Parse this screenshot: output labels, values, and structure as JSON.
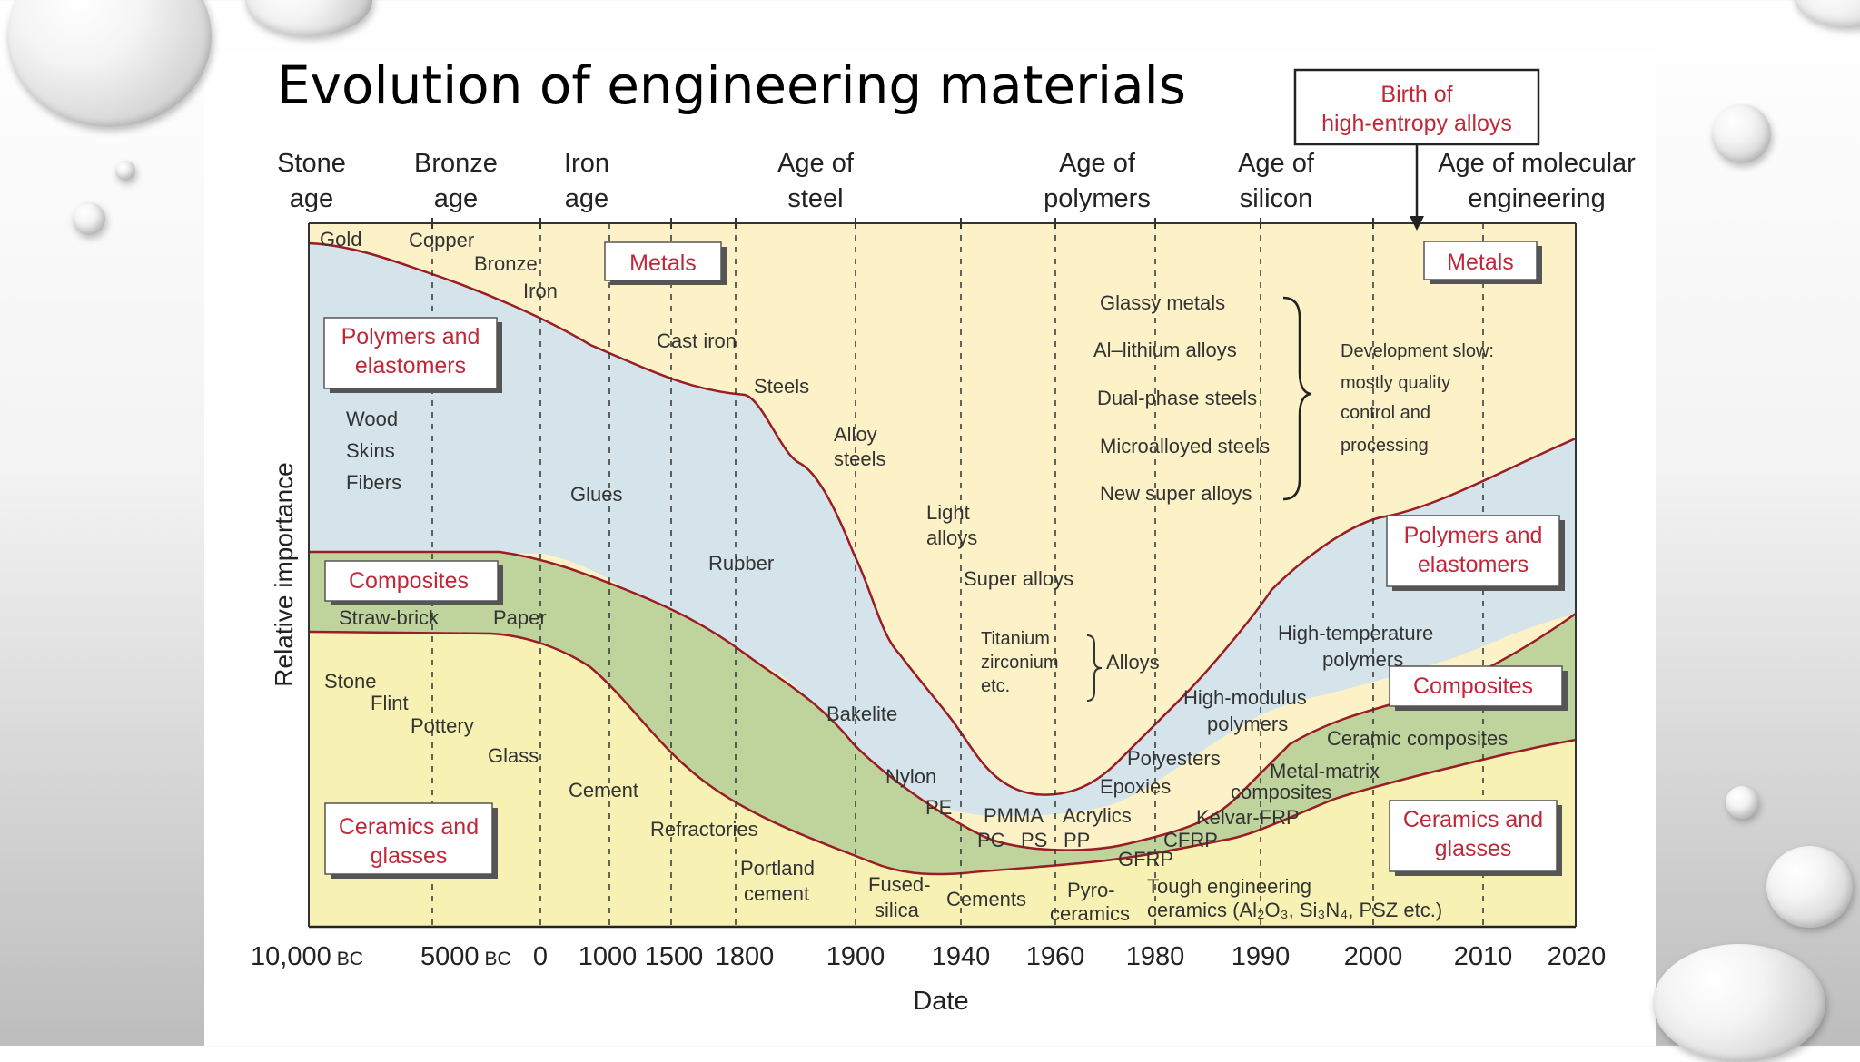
{
  "slide": {
    "title": "Evolution of engineering materials"
  },
  "diagram": {
    "ages": [
      {
        "line1": "Stone",
        "line2": "age"
      },
      {
        "line1": "Bronze",
        "line2": "age"
      },
      {
        "line1": "Iron",
        "line2": "age"
      },
      {
        "line1": "Age of",
        "line2": "steel"
      },
      {
        "line1": "Age of",
        "line2": "polymers"
      },
      {
        "line1": "Age of",
        "line2": "silicon"
      },
      {
        "line1": "Age of molecular",
        "line2": "engineering"
      }
    ],
    "callout": {
      "line1": "Birth of",
      "line2": "high-entropy alloys"
    },
    "category_boxes": {
      "metals_left": "Metals",
      "metals_right": "Metals",
      "polymers_left": [
        "Polymers and",
        "elastomers"
      ],
      "polymers_right": [
        "Polymers and",
        "elastomers"
      ],
      "composites_left": "Composites",
      "composites_right": "Composites",
      "ceramics_left": [
        "Ceramics and",
        "glasses"
      ],
      "ceramics_right": [
        "Ceramics and",
        "glasses"
      ]
    },
    "material_labels": {
      "gold": "Gold",
      "copper": "Copper",
      "bronze": "Bronze",
      "iron": "Iron",
      "cast_iron": "Cast iron",
      "steels": "Steels",
      "alloy_steels": [
        "Alloy",
        "steels"
      ],
      "light_alloys": [
        "Light",
        "alloys"
      ],
      "super_alloys": "Super alloys",
      "titanium": [
        "Titanium",
        "zirconium",
        "etc."
      ],
      "alloys": "Alloys",
      "glassy_metals": "Glassy metals",
      "al_lithium": "Al–lithium alloys",
      "dual_phase": "Dual-phase steels",
      "microalloyed": "Microalloyed steels",
      "new_super": "New super alloys",
      "dev_slow": [
        "Development slow:",
        "mostly quality",
        "control and",
        "processing"
      ],
      "wood": "Wood",
      "skins": "Skins",
      "fibers": "Fibers",
      "glues": "Glues",
      "rubber": "Rubber",
      "straw_brick": "Straw-brick",
      "paper": "Paper",
      "stone": "Stone",
      "flint": "Flint",
      "pottery": "Pottery",
      "glass": "Glass",
      "cement": "Cement",
      "refractories": "Refractories",
      "portland": [
        "Portland",
        "cement"
      ],
      "fused_silica": [
        "Fused-",
        "silica"
      ],
      "cements": "Cements",
      "pyro": [
        "Pyro-",
        "ceramics"
      ],
      "bakelite": "Bakelite",
      "nylon": "Nylon",
      "pe": "PE",
      "pmma": "PMMA",
      "acrylics": "Acrylics",
      "pc": "PC",
      "ps": "PS",
      "pp": "PP",
      "epoxies": "Epoxies",
      "polyesters": "Polyesters",
      "high_modulus": [
        "High-modulus",
        "polymers"
      ],
      "high_temp": [
        "High-temperature",
        "polymers"
      ],
      "ceramic_composites": "Ceramic composites",
      "metal_matrix": [
        "Metal-matrix",
        "composites"
      ],
      "kevlar": "Kelvar-FRP",
      "cfrp": "CFRP",
      "gfrp": "GFRP",
      "tough_eng": [
        "Tough engineering",
        "ceramics (Al₂O₃, Si₃N₄, PSZ etc.)"
      ]
    },
    "y_axis_label": "Relative importance",
    "x_axis_label": "Date",
    "x_ticks": [
      {
        "main": "10,000",
        "suffix": "BC"
      },
      {
        "main": "5000",
        "suffix": "BC"
      },
      {
        "main": "0",
        "suffix": ""
      },
      {
        "main": "1000",
        "suffix": ""
      },
      {
        "main": "1500",
        "suffix": ""
      },
      {
        "main": "1800",
        "suffix": ""
      },
      {
        "main": "1900",
        "suffix": ""
      },
      {
        "main": "1940",
        "suffix": ""
      },
      {
        "main": "1960",
        "suffix": ""
      },
      {
        "main": "1980",
        "suffix": ""
      },
      {
        "main": "1990",
        "suffix": ""
      },
      {
        "main": "2000",
        "suffix": ""
      },
      {
        "main": "2010",
        "suffix": ""
      },
      {
        "main": "2020",
        "suffix": ""
      }
    ],
    "colors": {
      "metals": "#fdf1c7",
      "polymers": "#d4e4ea",
      "composites": "#bfd39d",
      "ceramics": "#f7f2b4",
      "boundary": "#9b1c24",
      "box_text": "#c0283a"
    }
  }
}
